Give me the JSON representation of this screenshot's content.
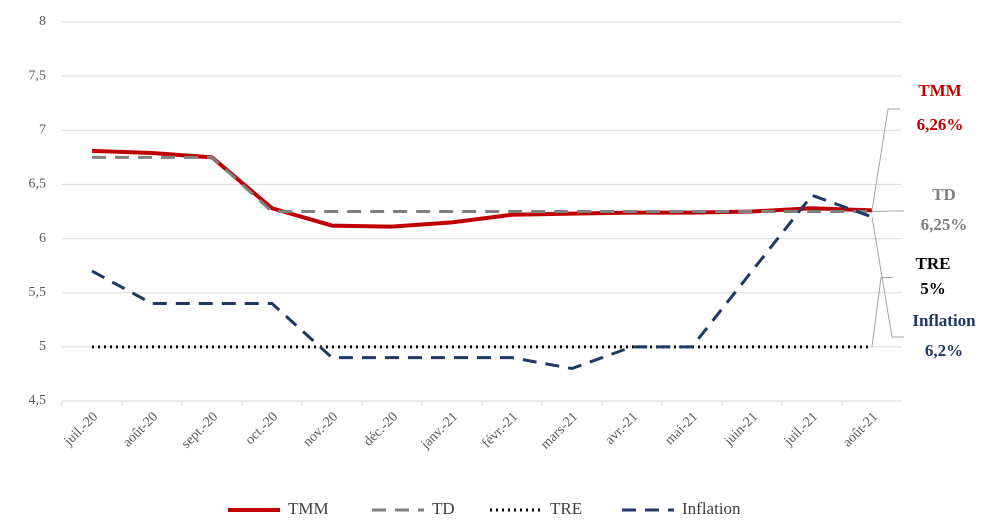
{
  "chart_data": {
    "type": "line",
    "categories": [
      "juil.-20",
      "août-20",
      "sept.-20",
      "oct.-20",
      "nov.-20",
      "déc.-20",
      "janv.-21",
      "févr.-21",
      "mars-21",
      "avr.-21",
      "mai-21",
      "juin-21",
      "juil.-21",
      "août-21"
    ],
    "series": [
      {
        "name": "TMM",
        "color": "#c00000",
        "style": "solid",
        "values": [
          6.81,
          6.79,
          6.75,
          6.28,
          6.12,
          6.11,
          6.15,
          6.22,
          6.23,
          6.24,
          6.24,
          6.25,
          6.28,
          6.26
        ],
        "value_labels": [
          null,
          null,
          null,
          null,
          null,
          null,
          null,
          null,
          null,
          null,
          null,
          null,
          null,
          "6,26%"
        ]
      },
      {
        "name": "TD",
        "color": "#808080",
        "style": "dashed",
        "values": [
          6.75,
          6.75,
          6.75,
          6.25,
          6.25,
          6.25,
          6.25,
          6.25,
          6.25,
          6.25,
          6.25,
          6.25,
          6.25,
          6.25
        ],
        "value_labels": [
          null,
          null,
          null,
          null,
          null,
          null,
          null,
          null,
          null,
          null,
          null,
          null,
          null,
          "6,25%"
        ]
      },
      {
        "name": "TRE",
        "color": "#000000",
        "style": "dotted",
        "values": [
          5,
          5,
          5,
          5,
          5,
          5,
          5,
          5,
          5,
          5,
          5,
          5,
          5,
          5
        ],
        "value_labels": [
          null,
          null,
          null,
          null,
          null,
          null,
          null,
          null,
          null,
          null,
          null,
          null,
          null,
          "5%"
        ]
      },
      {
        "name": "Inflation",
        "color": "#1f3864",
        "style": "dashed",
        "values": [
          5.7,
          5.4,
          5.4,
          5.4,
          4.9,
          4.9,
          4.9,
          4.9,
          4.8,
          5.0,
          5.0,
          5.7,
          6.4,
          6.2
        ],
        "value_labels": [
          null,
          null,
          null,
          null,
          null,
          null,
          null,
          null,
          null,
          null,
          null,
          null,
          null,
          "6,2%"
        ]
      }
    ],
    "ylim": [
      4.5,
      8
    ],
    "yticks": [
      {
        "value": 4.5,
        "label": "4,5"
      },
      5,
      {
        "value": 5.5,
        "label": "5,5"
      },
      6,
      {
        "value": 6.5,
        "label": "6,5"
      },
      7,
      {
        "value": 7.5,
        "label": "7,5"
      },
      8
    ],
    "grid": true,
    "legend": "bottom"
  }
}
